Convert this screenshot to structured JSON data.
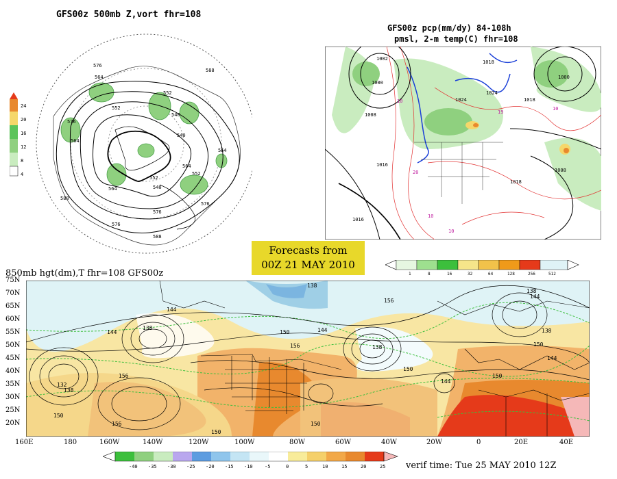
{
  "panel_500mb": {
    "title": "GFS00z   500mb Z,vort   fhr=108",
    "legend_values": [
      "24",
      "20",
      "16",
      "12",
      "8",
      "4"
    ],
    "contour_labels": [
      "576",
      "564",
      "552",
      "540",
      "588",
      "576",
      "564",
      "552",
      "540",
      "564",
      "576",
      "552",
      "564",
      "576",
      "588",
      "564",
      "552",
      "540",
      "576",
      "588"
    ]
  },
  "panel_pcp": {
    "title_line1": "GFS00z pcp(mm/dy) 84-108h",
    "title_line2": "pmsl, 2-m temp(C)  fhr=108",
    "isobar_labels": [
      "1000",
      "1002",
      "1008",
      "1016",
      "1018",
      "1024",
      "1024",
      "1018",
      "1008",
      "1000",
      "1016",
      "1018"
    ],
    "temp_labels": [
      "10",
      "19",
      "10",
      "20",
      "10",
      "10"
    ],
    "legend_values": [
      "1",
      "8",
      "16",
      "32",
      "64",
      "128",
      "256",
      "512"
    ]
  },
  "banner": {
    "line1": "Forecasts from",
    "line2": "00Z 21 MAY 2010"
  },
  "panel_850mb": {
    "title": "850mb hgt(dm),T   fhr=108 GFS00z",
    "lat_labels": [
      "75N",
      "70N",
      "65N",
      "60N",
      "55N",
      "50N",
      "45N",
      "40N",
      "35N",
      "30N",
      "25N",
      "20N"
    ],
    "lon_labels": [
      "160E",
      "180",
      "160W",
      "140W",
      "120W",
      "100W",
      "80W",
      "60W",
      "40W",
      "20W",
      "0",
      "20E",
      "40E"
    ],
    "contour_labels": [
      "138",
      "156",
      "144",
      "138",
      "144",
      "150",
      "156",
      "144",
      "138",
      "150",
      "144",
      "150",
      "132",
      "138",
      "156",
      "150",
      "156",
      "150",
      "150",
      "138",
      "144",
      "150",
      "138",
      "144"
    ],
    "temp_legend_values": [
      "-40",
      "-35",
      "-30",
      "-25",
      "-20",
      "-15",
      "-10",
      "-5",
      "0",
      "5",
      "10",
      "15",
      "20",
      "25"
    ],
    "verif_time": "verif time: Tue 25 MAY 2010 12Z"
  },
  "colors": {
    "land": "#f2b36a",
    "warm": "#e8892e",
    "hot": "#e53a1a",
    "ocean_cold": "#dff3f6",
    "banner": "#e8d82a",
    "precip_green": "#7ccf72"
  }
}
